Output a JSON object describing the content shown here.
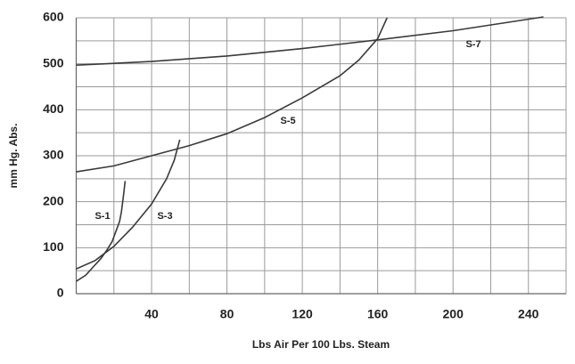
{
  "chart_data": {
    "type": "line",
    "x_label": "Lbs Air Per 100 Lbs. Steam",
    "y_label": "mm Hg. Abs.",
    "xlim": [
      0,
      260
    ],
    "ylim": [
      0,
      600
    ],
    "xticks": [
      40,
      80,
      120,
      160,
      200,
      240
    ],
    "yticks": [
      0,
      100,
      200,
      300,
      400,
      500,
      600
    ],
    "x_minor_grid": [
      20,
      60,
      100,
      140,
      180,
      220,
      260
    ],
    "y_minor_grid": [
      50,
      150,
      250,
      350,
      450,
      550
    ],
    "grid": true,
    "series": [
      {
        "name": "S-1",
        "color": "#3a3a3a",
        "x": [
          0,
          5,
          9,
          13,
          16,
          19,
          21,
          23,
          24,
          25,
          26
        ],
        "values": [
          27,
          40,
          58,
          76,
          93,
          113,
          135,
          157,
          178,
          210,
          245
        ]
      },
      {
        "name": "S-3",
        "color": "#3a3a3a",
        "x": [
          0,
          10,
          20,
          30,
          40,
          48,
          52,
          55
        ],
        "values": [
          54,
          72,
          103,
          145,
          195,
          250,
          290,
          335
        ]
      },
      {
        "name": "S-5",
        "color": "#3a3a3a",
        "x": [
          0,
          20,
          40,
          60,
          80,
          100,
          120,
          140,
          150,
          160,
          165
        ],
        "values": [
          265,
          278,
          300,
          322,
          348,
          383,
          426,
          474,
          508,
          555,
          600
        ]
      },
      {
        "name": "S-7",
        "color": "#3a3a3a",
        "x": [
          0,
          40,
          80,
          120,
          160,
          200,
          248
        ],
        "values": [
          497,
          505,
          517,
          533,
          552,
          572,
          602
        ]
      }
    ]
  }
}
